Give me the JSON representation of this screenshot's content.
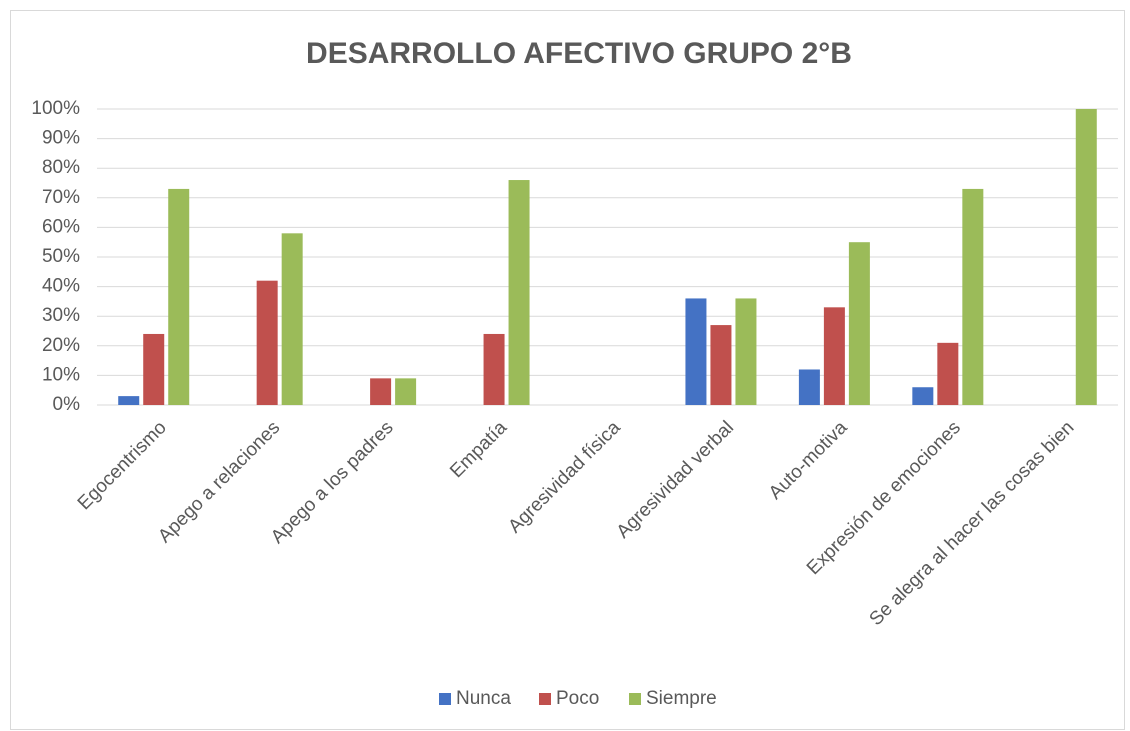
{
  "chart_data": {
    "type": "bar",
    "title": "DESARROLLO AFECTIVO GRUPO 2°B",
    "categories": [
      "Egocentrismo",
      "Apego a relaciones",
      "Apego a los padres",
      "Empatía",
      "Agresividad física",
      "Agresividad verbal",
      "Auto-motiva",
      "Expresión de emociones",
      "Se alegra al hacer las cosas bien"
    ],
    "series": [
      {
        "name": "Nunca",
        "color": "#4472c4",
        "values": [
          3,
          0,
          0,
          0,
          0,
          36,
          12,
          6,
          0
        ]
      },
      {
        "name": "Poco",
        "color": "#c0504d",
        "values": [
          24,
          42,
          9,
          24,
          0,
          27,
          33,
          21,
          0
        ]
      },
      {
        "name": "Siempre",
        "color": "#9bbb59",
        "values": [
          73,
          58,
          9,
          76,
          0,
          36,
          55,
          73,
          100
        ]
      }
    ],
    "ylim": [
      0,
      100
    ],
    "yticks": [
      {
        "value": 0,
        "label": "0%"
      },
      {
        "value": 10,
        "label": "10%"
      },
      {
        "value": 20,
        "label": "20%"
      },
      {
        "value": 30,
        "label": "30%"
      },
      {
        "value": 40,
        "label": "40%"
      },
      {
        "value": 50,
        "label": "50%"
      },
      {
        "value": 60,
        "label": "60%"
      },
      {
        "value": 70,
        "label": "70%"
      },
      {
        "value": 80,
        "label": "80%"
      },
      {
        "value": 90,
        "label": "90%"
      },
      {
        "value": 100,
        "label": "100%"
      }
    ],
    "grid": true,
    "legend": "bottom"
  }
}
